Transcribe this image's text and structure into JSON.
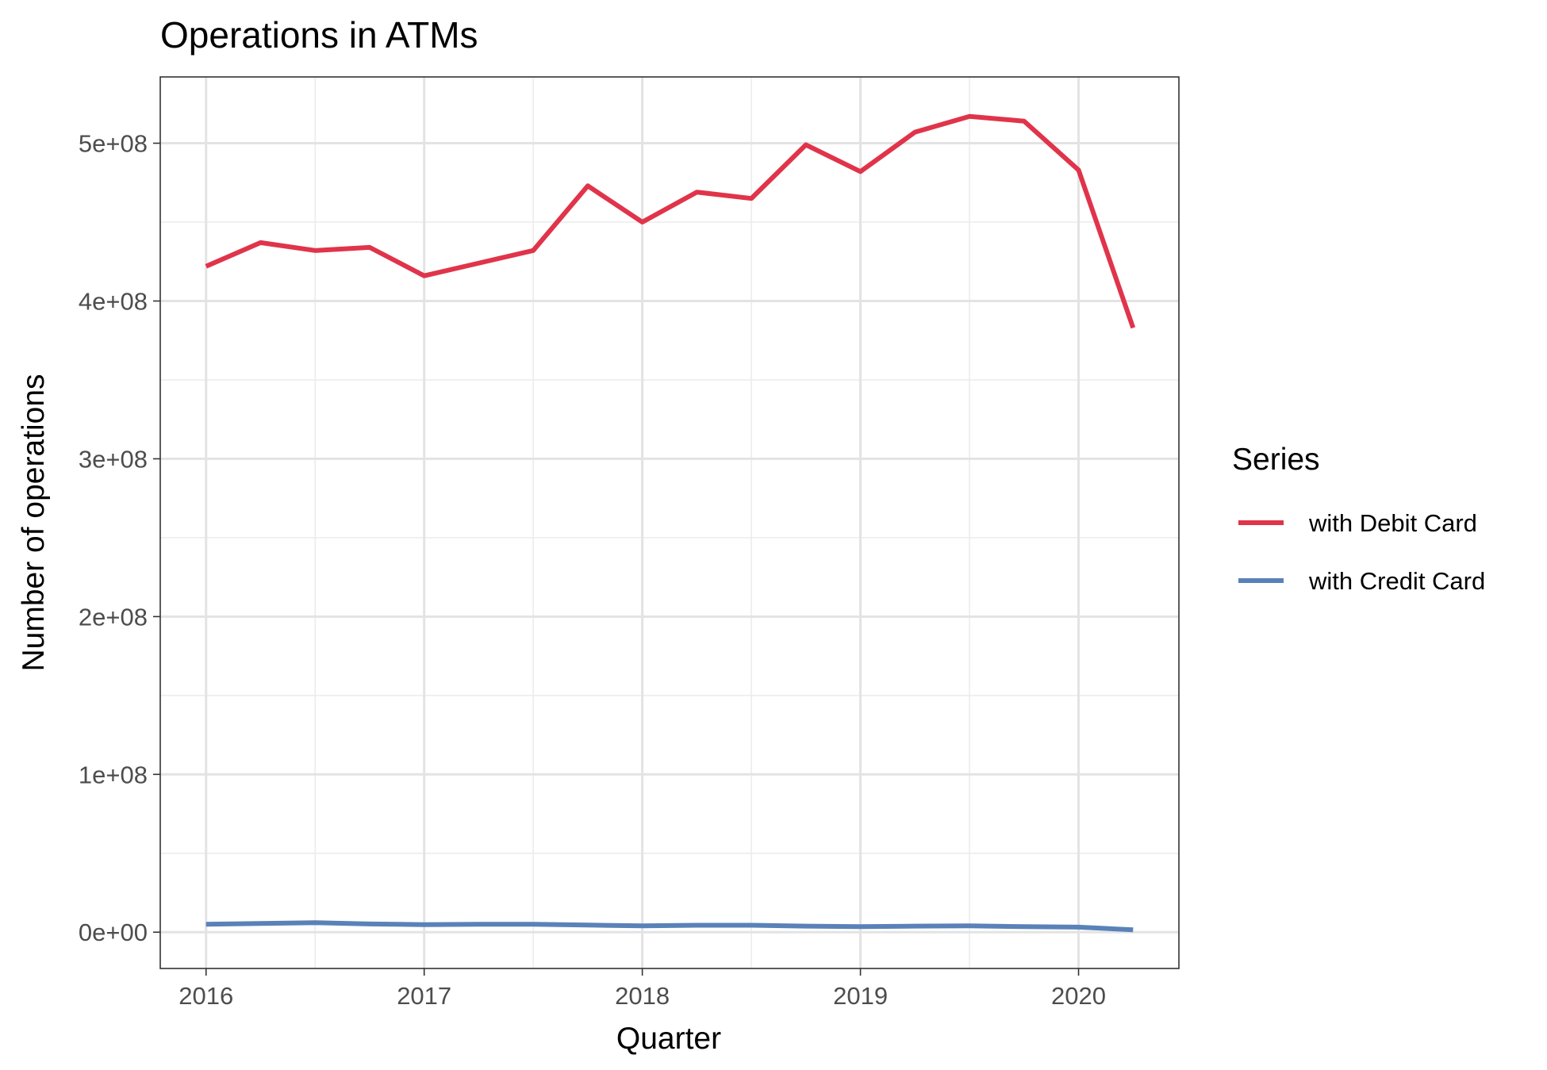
{
  "chart_data": {
    "type": "line",
    "title": "Operations in ATMs",
    "xlabel": "Quarter",
    "ylabel": "Number of operations",
    "x": [
      2016.0,
      2016.25,
      2016.5,
      2016.75,
      2017.0,
      2017.25,
      2017.5,
      2017.75,
      2018.0,
      2018.25,
      2018.5,
      2018.75,
      2019.0,
      2019.25,
      2019.5,
      2019.75,
      2020.0,
      2020.25
    ],
    "x_ticks": [
      2016,
      2017,
      2018,
      2019,
      2020
    ],
    "x_tick_labels": [
      "2016",
      "2017",
      "2018",
      "2019",
      "2020"
    ],
    "xlim": [
      2015.79,
      2020.46
    ],
    "y_ticks": [
      0,
      100000000,
      200000000,
      300000000,
      400000000,
      500000000
    ],
    "y_tick_labels": [
      "0e+00",
      "1e+08",
      "2e+08",
      "3e+08",
      "4e+08",
      "5e+08"
    ],
    "ylim": [
      -23000000,
      542000000
    ],
    "grid": true,
    "legend": {
      "title": "Series",
      "position": "right"
    },
    "series": [
      {
        "name": "with Debit Card",
        "color": "#e0344a",
        "values": [
          422000000,
          437000000,
          432000000,
          434000000,
          416000000,
          424000000,
          432000000,
          473000000,
          450000000,
          469000000,
          465000000,
          499000000,
          482000000,
          507000000,
          517000000,
          514000000,
          483000000,
          383000000
        ]
      },
      {
        "name": "with Credit Card",
        "color": "#5a82b8",
        "values": [
          5000000,
          5500000,
          6000000,
          5200000,
          4800000,
          5000000,
          5000000,
          4500000,
          4000000,
          4400000,
          4400000,
          3800000,
          3500000,
          3800000,
          4000000,
          3500000,
          3200000,
          1500000
        ]
      }
    ]
  }
}
